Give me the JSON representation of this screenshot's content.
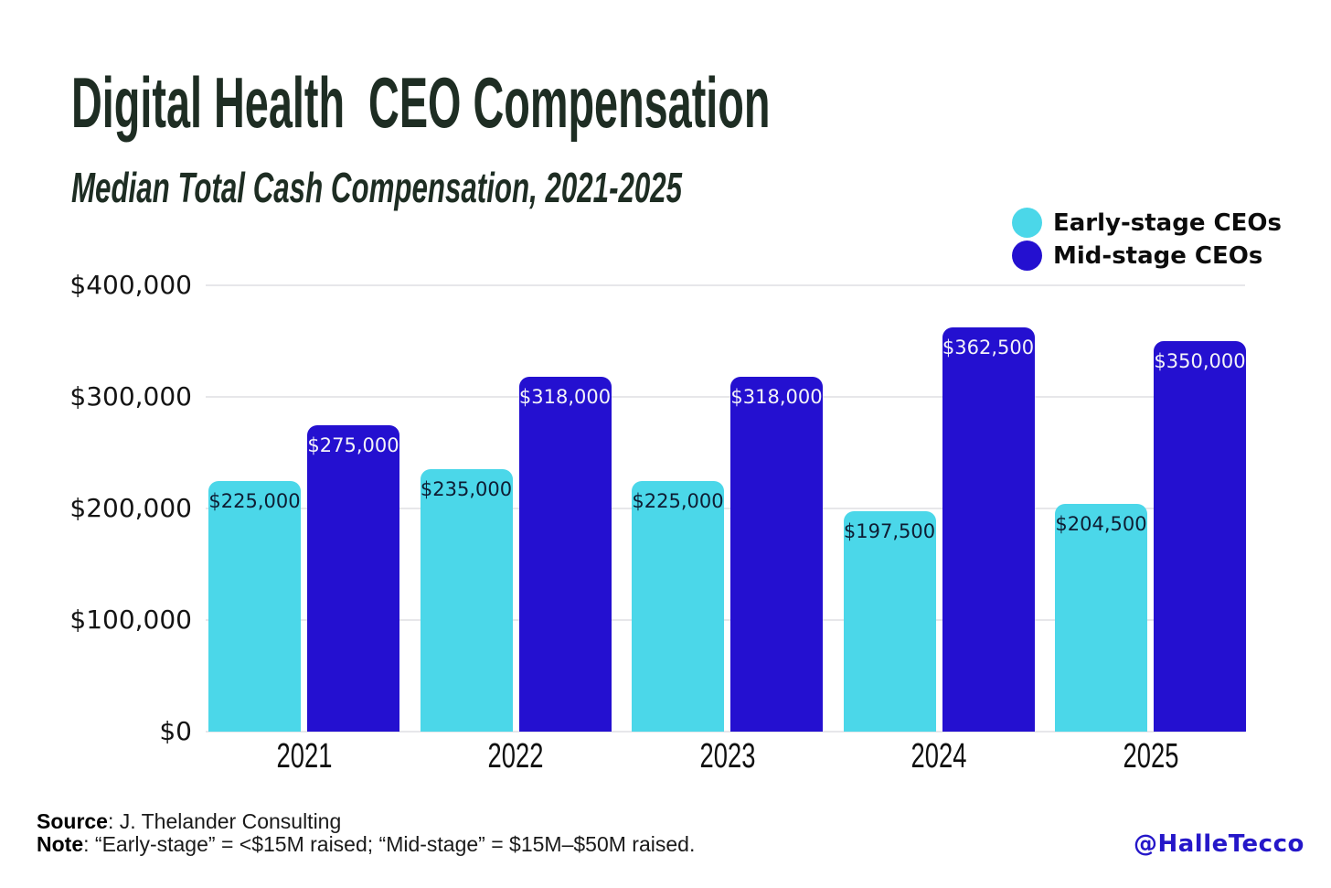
{
  "page": {
    "background": "#ffffff",
    "title_color": "#1e2d23"
  },
  "chart_data": {
    "type": "bar",
    "title": "Digital Health  CEO Compensation",
    "subtitle": "Median Total Cash Compensation, 2021-2025",
    "categories": [
      "2021",
      "2022",
      "2023",
      "2024",
      "2025"
    ],
    "series": [
      {
        "name": "Early-stage CEOs",
        "color": "#4bd7e9",
        "label_color": "#0e1d33",
        "values": [
          225000,
          235000,
          225000,
          197500,
          204500
        ],
        "labels": [
          "$225,000",
          "$235,000",
          "$225,000",
          "$197,500",
          "$204,500"
        ]
      },
      {
        "name": "Mid-stage CEOs",
        "color": "#2410d0",
        "label_color": "#f3f3f8",
        "values": [
          275000,
          318000,
          318000,
          362500,
          350000
        ],
        "labels": [
          "$275,000",
          "$318,000",
          "$318,000",
          "$362,500",
          "$350,000"
        ]
      }
    ],
    "yticks": [
      {
        "value": 0,
        "label": "$0"
      },
      {
        "value": 100000,
        "label": "$100,000"
      },
      {
        "value": 200000,
        "label": "$200,000"
      },
      {
        "value": 300000,
        "label": "$300,000"
      },
      {
        "value": 400000,
        "label": "$400,000"
      }
    ],
    "ylim": [
      0,
      400000
    ],
    "grid": true,
    "legend_position": "top-right"
  },
  "footer": {
    "source_label": "Source",
    "source_rest": ": J. Thelander Consulting",
    "note_label": "Note",
    "note_rest": ": “Early-stage” = <$15M raised; “Mid-stage” = $15M–$50M raised.",
    "watermark": "@HalleTecco"
  }
}
